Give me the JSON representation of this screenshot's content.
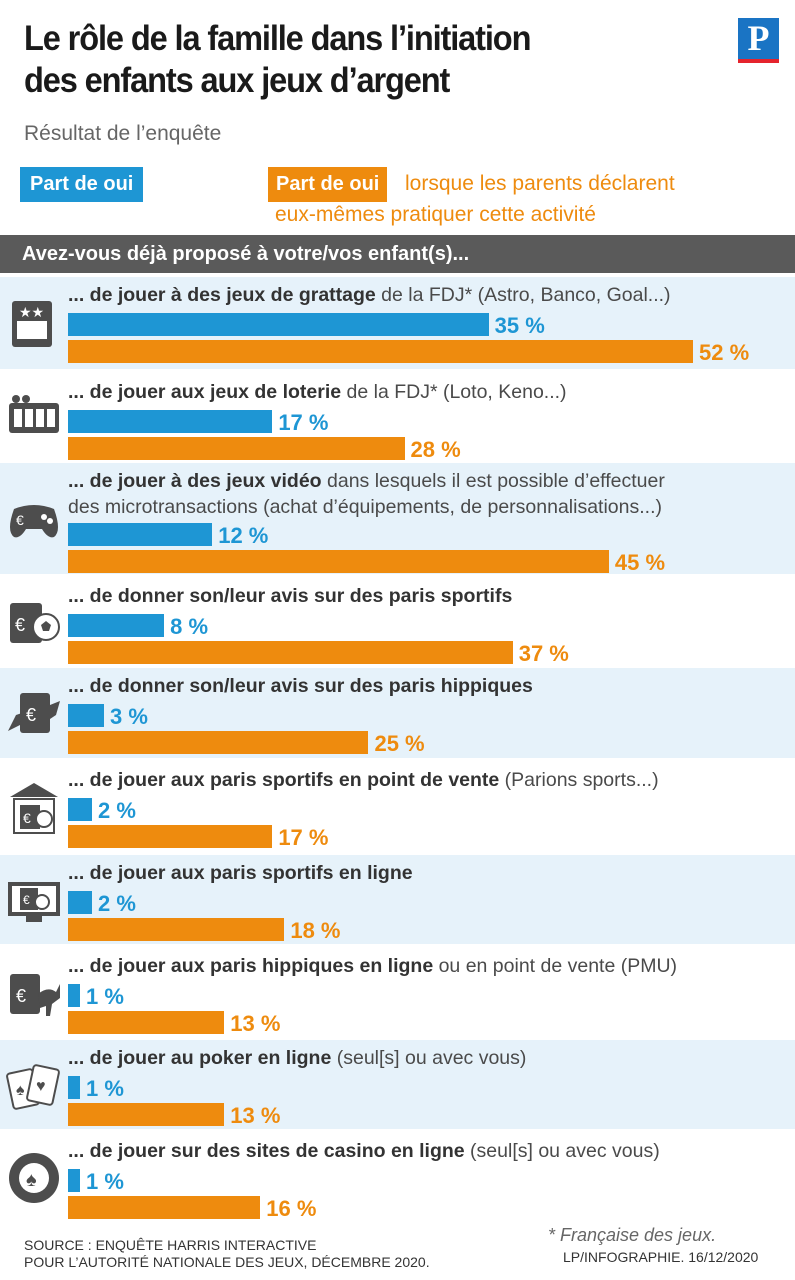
{
  "header": {
    "title_line1": "Le rôle de la famille dans l’initiation",
    "title_line2": "des enfants aux jeux d’argent",
    "subtitle": "Résultat de l’enquête",
    "logo": "P"
  },
  "legend": {
    "blue_label": "Part de oui",
    "orange_label": "Part de oui",
    "orange_rest_line1": "lorsque les parents déclarent",
    "orange_rest_line2": "eux-mêmes pratiquer cette activité"
  },
  "question": "Avez-vous déjà proposé à votre/vos enfant(s)...",
  "chart_data": {
    "type": "bar",
    "orientation": "horizontal",
    "colors": {
      "general": "#1e96d4",
      "parents_practicing": "#ee8b0e"
    },
    "categories": [
      {
        "bold": "... de jouer à des jeux de grattage",
        "rest": " de la FDJ* (Astro, Banco, Goal...)",
        "line2": "",
        "icon": "scratch-card-icon"
      },
      {
        "bold": "... de jouer aux jeux de loterie",
        "rest": " de la FDJ* (Loto, Keno...)",
        "line2": "",
        "icon": "lottery-icon"
      },
      {
        "bold": "... de jouer à des jeux vidéo",
        "rest": " dans lesquels il est possible d’effectuer",
        "line2": "des microtransactions (achat d’équipements, de personnalisations...)",
        "icon": "gamepad-icon"
      },
      {
        "bold": "... de donner son/leur avis sur des paris sportifs",
        "rest": "",
        "line2": "",
        "icon": "sports-bet-icon"
      },
      {
        "bold": "... de donner son/leur avis sur des paris hippiques",
        "rest": "",
        "line2": "",
        "icon": "horse-bet-icon"
      },
      {
        "bold": "... de jouer aux paris sportifs en point de vente",
        "rest": " (Parions sports...)",
        "line2": "",
        "icon": "store-bet-icon"
      },
      {
        "bold": "... de jouer aux paris sportifs en ligne",
        "rest": "",
        "line2": "",
        "icon": "online-sports-icon"
      },
      {
        "bold": "... de jouer aux paris hippiques en ligne",
        "rest": " ou en point de vente (PMU)",
        "line2": "",
        "icon": "online-horse-icon"
      },
      {
        "bold": "... de jouer au poker en ligne",
        "rest": " (seul[s] ou avec vous)",
        "line2": "",
        "icon": "poker-cards-icon"
      },
      {
        "bold": "... de jouer sur des sites de casino en ligne",
        "rest": " (seul[s] ou avec vous)",
        "line2": "",
        "icon": "casino-chip-icon"
      }
    ],
    "series": [
      {
        "name": "Part de oui",
        "values": [
          35,
          17,
          12,
          8,
          3,
          2,
          2,
          1,
          1,
          1
        ],
        "labels": [
          "35 %",
          "17 %",
          "12 %",
          "8 %",
          "3 %",
          "2 %",
          "2 %",
          "1 %",
          "1 %",
          "1 %"
        ]
      },
      {
        "name": "Part de oui lorsque les parents déclarent eux-mêmes pratiquer cette activité",
        "values": [
          52,
          28,
          45,
          37,
          25,
          17,
          18,
          13,
          13,
          16
        ],
        "labels": [
          "52 %",
          "28 %",
          "45 %",
          "37 %",
          "25 %",
          "17 %",
          "18 %",
          "13 %",
          "13 %",
          "16 %"
        ]
      }
    ],
    "xlim": [
      0,
      52
    ]
  },
  "footer": {
    "source_line1": "SOURCE : ENQUÊTE HARRIS INTERACTIVE",
    "source_line2": "POUR L’AUTORITÉ NATIONALE DES JEUX, DÉCEMBRE 2020.",
    "note": "* Française des jeux.",
    "credit": "LP/INFOGRAPHIE.  16/12/2020"
  }
}
